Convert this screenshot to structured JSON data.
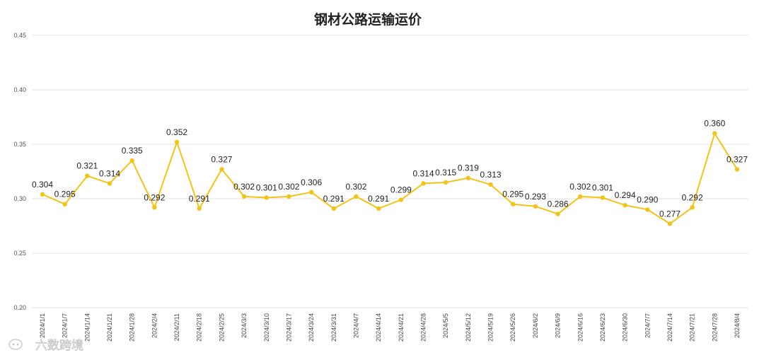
{
  "chart_data": {
    "type": "line",
    "title": "钢材公路运输运价",
    "xlabel": "",
    "ylabel": "",
    "ylim": [
      0.2,
      0.45
    ],
    "yticks": [
      "0.20",
      "0.25",
      "0.30",
      "0.35",
      "0.40",
      "0.45"
    ],
    "grid": true,
    "line_color": "#f2c318",
    "categories": [
      "2024/1/1",
      "2024/1/7",
      "2024/1/14",
      "2024/1/21",
      "2024/1/28",
      "2024/2/4",
      "2024/2/11",
      "2024/2/18",
      "2024/2/25",
      "2024/3/3",
      "2024/3/10",
      "2024/3/17",
      "2024/3/24",
      "2024/3/31",
      "2024/4/7",
      "2024/4/14",
      "2024/4/21",
      "2024/4/28",
      "2024/5/5",
      "2024/5/12",
      "2024/5/19",
      "2024/5/26",
      "2024/6/2",
      "2024/6/9",
      "2024/6/16",
      "2024/6/23",
      "2024/6/30",
      "2024/7/7",
      "2024/7/14",
      "2024/7/21",
      "2024/7/28",
      "2024/8/4"
    ],
    "values": [
      0.304,
      0.295,
      0.321,
      0.314,
      0.335,
      0.292,
      0.352,
      0.291,
      0.327,
      0.302,
      0.301,
      0.302,
      0.306,
      0.291,
      0.302,
      0.291,
      0.299,
      0.314,
      0.315,
      0.319,
      0.313,
      0.295,
      0.293,
      0.286,
      0.302,
      0.301,
      0.294,
      0.29,
      0.277,
      0.292,
      0.36,
      0.327
    ],
    "data_labels": [
      "0.304",
      "0.295",
      "0.321",
      "0.314",
      "0.335",
      "0.292",
      "0.352",
      "0.291",
      "0.327",
      "0.302",
      "0.301",
      "0.302",
      "0.306",
      "0.291",
      "0.302",
      "0.291",
      "0.299",
      "0.314",
      "0.315",
      "0.319",
      "0.313",
      "0.295",
      "0.293",
      "0.286",
      "0.302",
      "0.301",
      "0.294",
      "0.290",
      "0.277",
      "0.292",
      "0.360",
      "0.327"
    ]
  },
  "watermark": {
    "text": "六数跨境",
    "icon": "chat-bubble-logo-icon"
  }
}
